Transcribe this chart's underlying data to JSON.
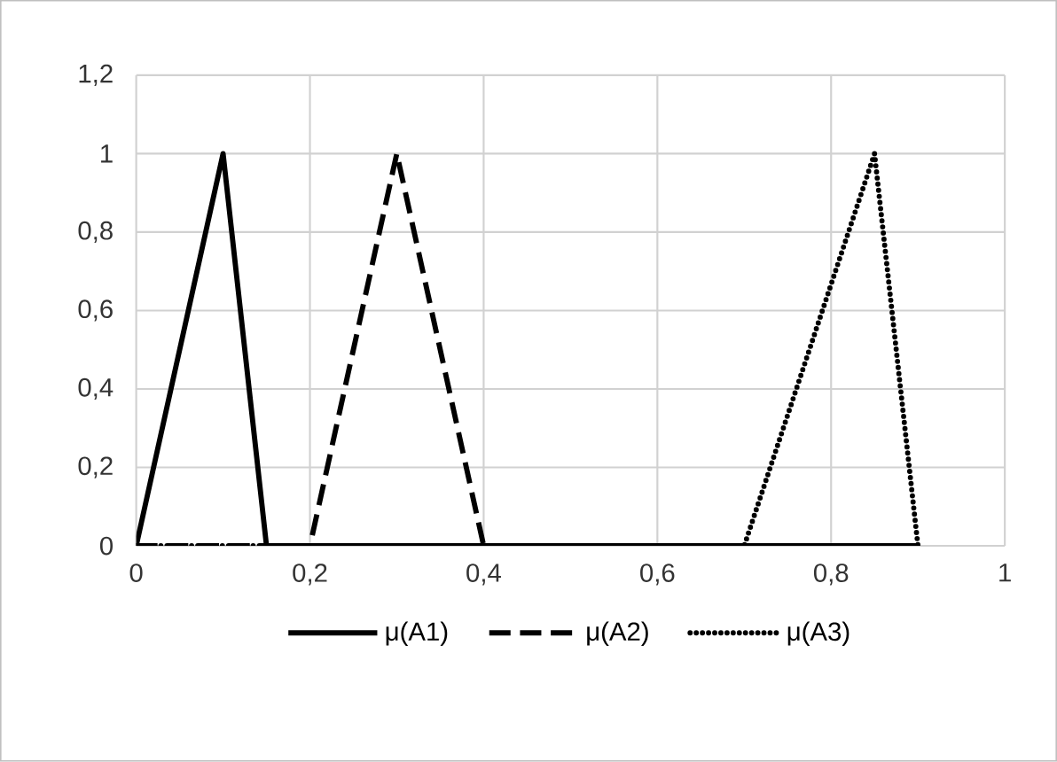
{
  "chart_data": {
    "type": "line",
    "xlim": [
      0,
      1
    ],
    "ylim": [
      0,
      1.2
    ],
    "xticks": [
      0,
      {
        "value": 0.2,
        "label": "0,2"
      },
      {
        "value": 0.4,
        "label": "0,4"
      },
      {
        "value": 0.6,
        "label": "0,6"
      },
      {
        "value": 0.8,
        "label": "0,8"
      },
      1
    ],
    "yticks": [
      0,
      {
        "value": 0.2,
        "label": "0,2"
      },
      {
        "value": 0.4,
        "label": "0,4"
      },
      {
        "value": 0.6,
        "label": "0,6"
      },
      {
        "value": 0.8,
        "label": "0,8"
      },
      1,
      {
        "value": 1.2,
        "label": "1,2"
      }
    ],
    "grid": true,
    "legend": "bottom",
    "marker": "none",
    "series": [
      {
        "name": "μ(A1)",
        "color": "#000000",
        "line_style": "solid",
        "x": [
          0,
          0.1,
          0.15,
          0.9
        ],
        "values": [
          0,
          1,
          0,
          0
        ]
      },
      {
        "name": "μ(A2)",
        "color": "#000000",
        "line_style": "dashed",
        "x": [
          0,
          0.2,
          0.3,
          0.4,
          0.9
        ],
        "values": [
          0,
          0,
          1,
          0,
          0
        ]
      },
      {
        "name": "μ(A3)",
        "color": "#000000",
        "line_style": "dotted",
        "x": [
          0,
          0.7,
          0.85,
          0.9
        ],
        "values": [
          0,
          0,
          1,
          0
        ]
      }
    ]
  }
}
